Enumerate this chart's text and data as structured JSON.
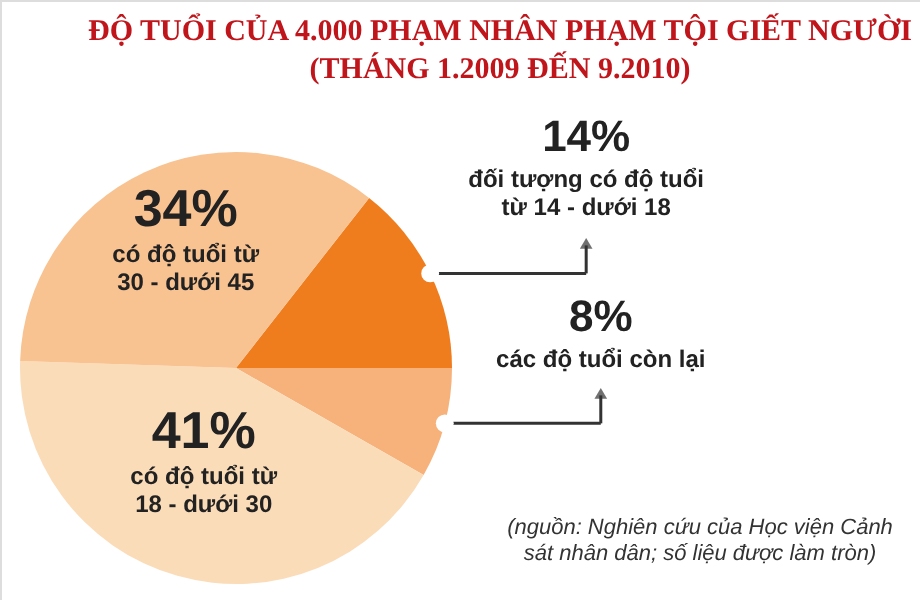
{
  "chart_data": {
    "type": "pie",
    "title": "ĐỘ TUỔI CỦA 4.000 PHẠM NHÂN PHẠM TỘI GIẾT NGƯỜI",
    "subtitle": "(THÁNG 1.2009 ĐẾN 9.2010)",
    "categories": [
      "đối tượng có độ tuổi từ 14 - dưới 18",
      "các độ tuổi còn lại",
      "có độ tuổi từ 18 - dưới 30",
      "có độ tuổi từ 30 - dưới 45"
    ],
    "values": [
      14,
      8,
      41,
      34
    ],
    "value_labels": [
      "14%",
      "8%",
      "41%",
      "34%"
    ],
    "colors": [
      "#ef7d1e",
      "#f6b27a",
      "#fbdcb8",
      "#f8c291"
    ],
    "annotations": [
      "(nguồn: Nghiên cứu của Học viện Cảnh sát nhân dân; số liệu được làm tròn)"
    ]
  }
}
